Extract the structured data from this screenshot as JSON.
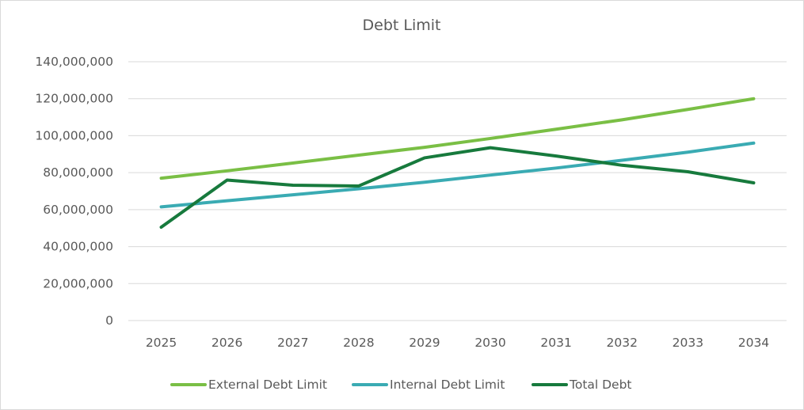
{
  "chart_data": {
    "type": "line",
    "title": "Debt Limit",
    "xlabel": "",
    "ylabel": "",
    "categories": [
      "2025",
      "2026",
      "2027",
      "2028",
      "2029",
      "2030",
      "2031",
      "2032",
      "2033",
      "2034"
    ],
    "ylim": [
      0,
      140000000
    ],
    "yticks": [
      0,
      20000000,
      40000000,
      60000000,
      80000000,
      100000000,
      120000000,
      140000000
    ],
    "ytick_labels": [
      "0",
      "20,000,000",
      "40,000,000",
      "60,000,000",
      "80,000,000",
      "100,000,000",
      "120,000,000",
      "140,000,000"
    ],
    "grid": true,
    "legend_position": "bottom",
    "series": [
      {
        "name": "External Debt Limit",
        "color": "#7abf45",
        "values": [
          77000000,
          81000000,
          85200000,
          89500000,
          93700000,
          98500000,
          103500000,
          108600000,
          114200000,
          120000000
        ]
      },
      {
        "name": "Internal Debt Limit",
        "color": "#3aabb3",
        "values": [
          61500000,
          64800000,
          68000000,
          71300000,
          74800000,
          78700000,
          82500000,
          86700000,
          91100000,
          96000000
        ]
      },
      {
        "name": "Total Debt",
        "color": "#177a3d",
        "values": [
          50500000,
          76000000,
          73200000,
          72800000,
          88000000,
          93500000,
          89000000,
          84000000,
          80500000,
          74500000
        ]
      }
    ]
  }
}
